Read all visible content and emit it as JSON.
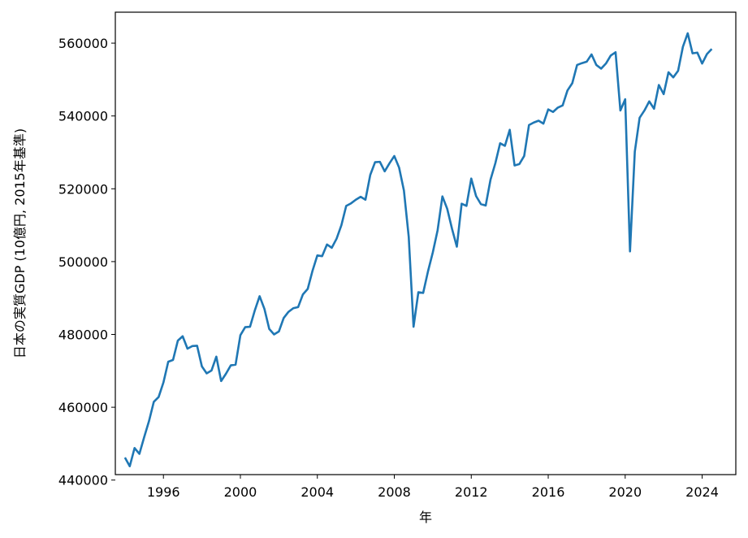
{
  "chart_data": {
    "type": "line",
    "title": "",
    "xlabel": "年",
    "ylabel": "日本の実質GDP (10億円, 2015年基準)",
    "xlim": [
      1993.5,
      2025.75
    ],
    "ylim": [
      441500,
      568500
    ],
    "xticks": [
      1996,
      2000,
      2004,
      2008,
      2012,
      2016,
      2020,
      2024
    ],
    "yticks": [
      440000,
      460000,
      480000,
      500000,
      520000,
      540000,
      560000
    ],
    "xtick_labels": [
      "1996",
      "2000",
      "2004",
      "2008",
      "2012",
      "2016",
      "2020",
      "2024"
    ],
    "ytick_labels": [
      "440000",
      "460000",
      "480000",
      "500000",
      "520000",
      "540000",
      "560000"
    ],
    "grid": false,
    "legend": "none",
    "series": [
      {
        "color": "#1f77b4",
        "x": [
          1994.0,
          1994.25,
          1994.5,
          1994.75,
          1995.0,
          1995.25,
          1995.5,
          1995.75,
          1996.0,
          1996.25,
          1996.5,
          1996.75,
          1997.0,
          1997.25,
          1997.5,
          1997.75,
          1998.0,
          1998.25,
          1998.5,
          1998.75,
          1999.0,
          1999.25,
          1999.5,
          1999.75,
          2000.0,
          2000.25,
          2000.5,
          2000.75,
          2001.0,
          2001.25,
          2001.5,
          2001.75,
          2002.0,
          2002.25,
          2002.5,
          2002.75,
          2003.0,
          2003.25,
          2003.5,
          2003.75,
          2004.0,
          2004.25,
          2004.5,
          2004.75,
          2005.0,
          2005.25,
          2005.5,
          2005.75,
          2006.0,
          2006.25,
          2006.5,
          2006.75,
          2007.0,
          2007.25,
          2007.5,
          2007.75,
          2008.0,
          2008.25,
          2008.5,
          2008.75,
          2009.0,
          2009.25,
          2009.5,
          2009.75,
          2010.0,
          2010.25,
          2010.5,
          2010.75,
          2011.0,
          2011.25,
          2011.5,
          2011.75,
          2012.0,
          2012.25,
          2012.5,
          2012.75,
          2013.0,
          2013.25,
          2013.5,
          2013.75,
          2014.0,
          2014.25,
          2014.5,
          2014.75,
          2015.0,
          2015.25,
          2015.5,
          2015.75,
          2016.0,
          2016.25,
          2016.5,
          2016.75,
          2017.0,
          2017.25,
          2017.5,
          2017.75,
          2018.0,
          2018.25,
          2018.5,
          2018.75,
          2019.0,
          2019.25,
          2019.5,
          2019.75,
          2020.0,
          2020.25,
          2020.5,
          2020.75,
          2021.0,
          2021.25,
          2021.5,
          2021.75,
          2022.0,
          2022.25,
          2022.5,
          2022.75,
          2023.0,
          2023.25,
          2023.5,
          2023.75,
          2024.0,
          2024.25,
          2024.5
        ],
        "y": [
          446200,
          443800,
          448800,
          447200,
          451800,
          456200,
          461500,
          462800,
          466800,
          472500,
          473000,
          478300,
          479500,
          476100,
          476800,
          476900,
          471200,
          469300,
          470100,
          473900,
          467200,
          469200,
          471500,
          471700,
          479800,
          482000,
          482100,
          486600,
          490500,
          487000,
          481500,
          480000,
          480800,
          484500,
          486200,
          487200,
          487500,
          491000,
          492500,
          497500,
          501700,
          501500,
          504700,
          503800,
          506300,
          510000,
          515300,
          516000,
          517000,
          517800,
          517000,
          523800,
          527300,
          527400,
          524800,
          527000,
          529000,
          525800,
          519500,
          506800,
          482100,
          491600,
          491400,
          497300,
          502500,
          508600,
          517900,
          514500,
          509000,
          504100,
          515900,
          515300,
          522800,
          518000,
          515800,
          515400,
          522500,
          527000,
          532500,
          531800,
          536200,
          526400,
          526800,
          529000,
          537500,
          538200,
          538700,
          537900,
          541800,
          541100,
          542300,
          542900,
          547000,
          549000,
          554000,
          554500,
          554900,
          556900,
          554000,
          553000,
          554400,
          556600,
          557500,
          541500,
          544600,
          502800,
          530200,
          539500,
          541500,
          544000,
          542000,
          548500,
          546000,
          552000,
          550600,
          552400,
          559000,
          562700,
          557200,
          557400,
          554400,
          557000,
          558400
        ]
      }
    ]
  }
}
